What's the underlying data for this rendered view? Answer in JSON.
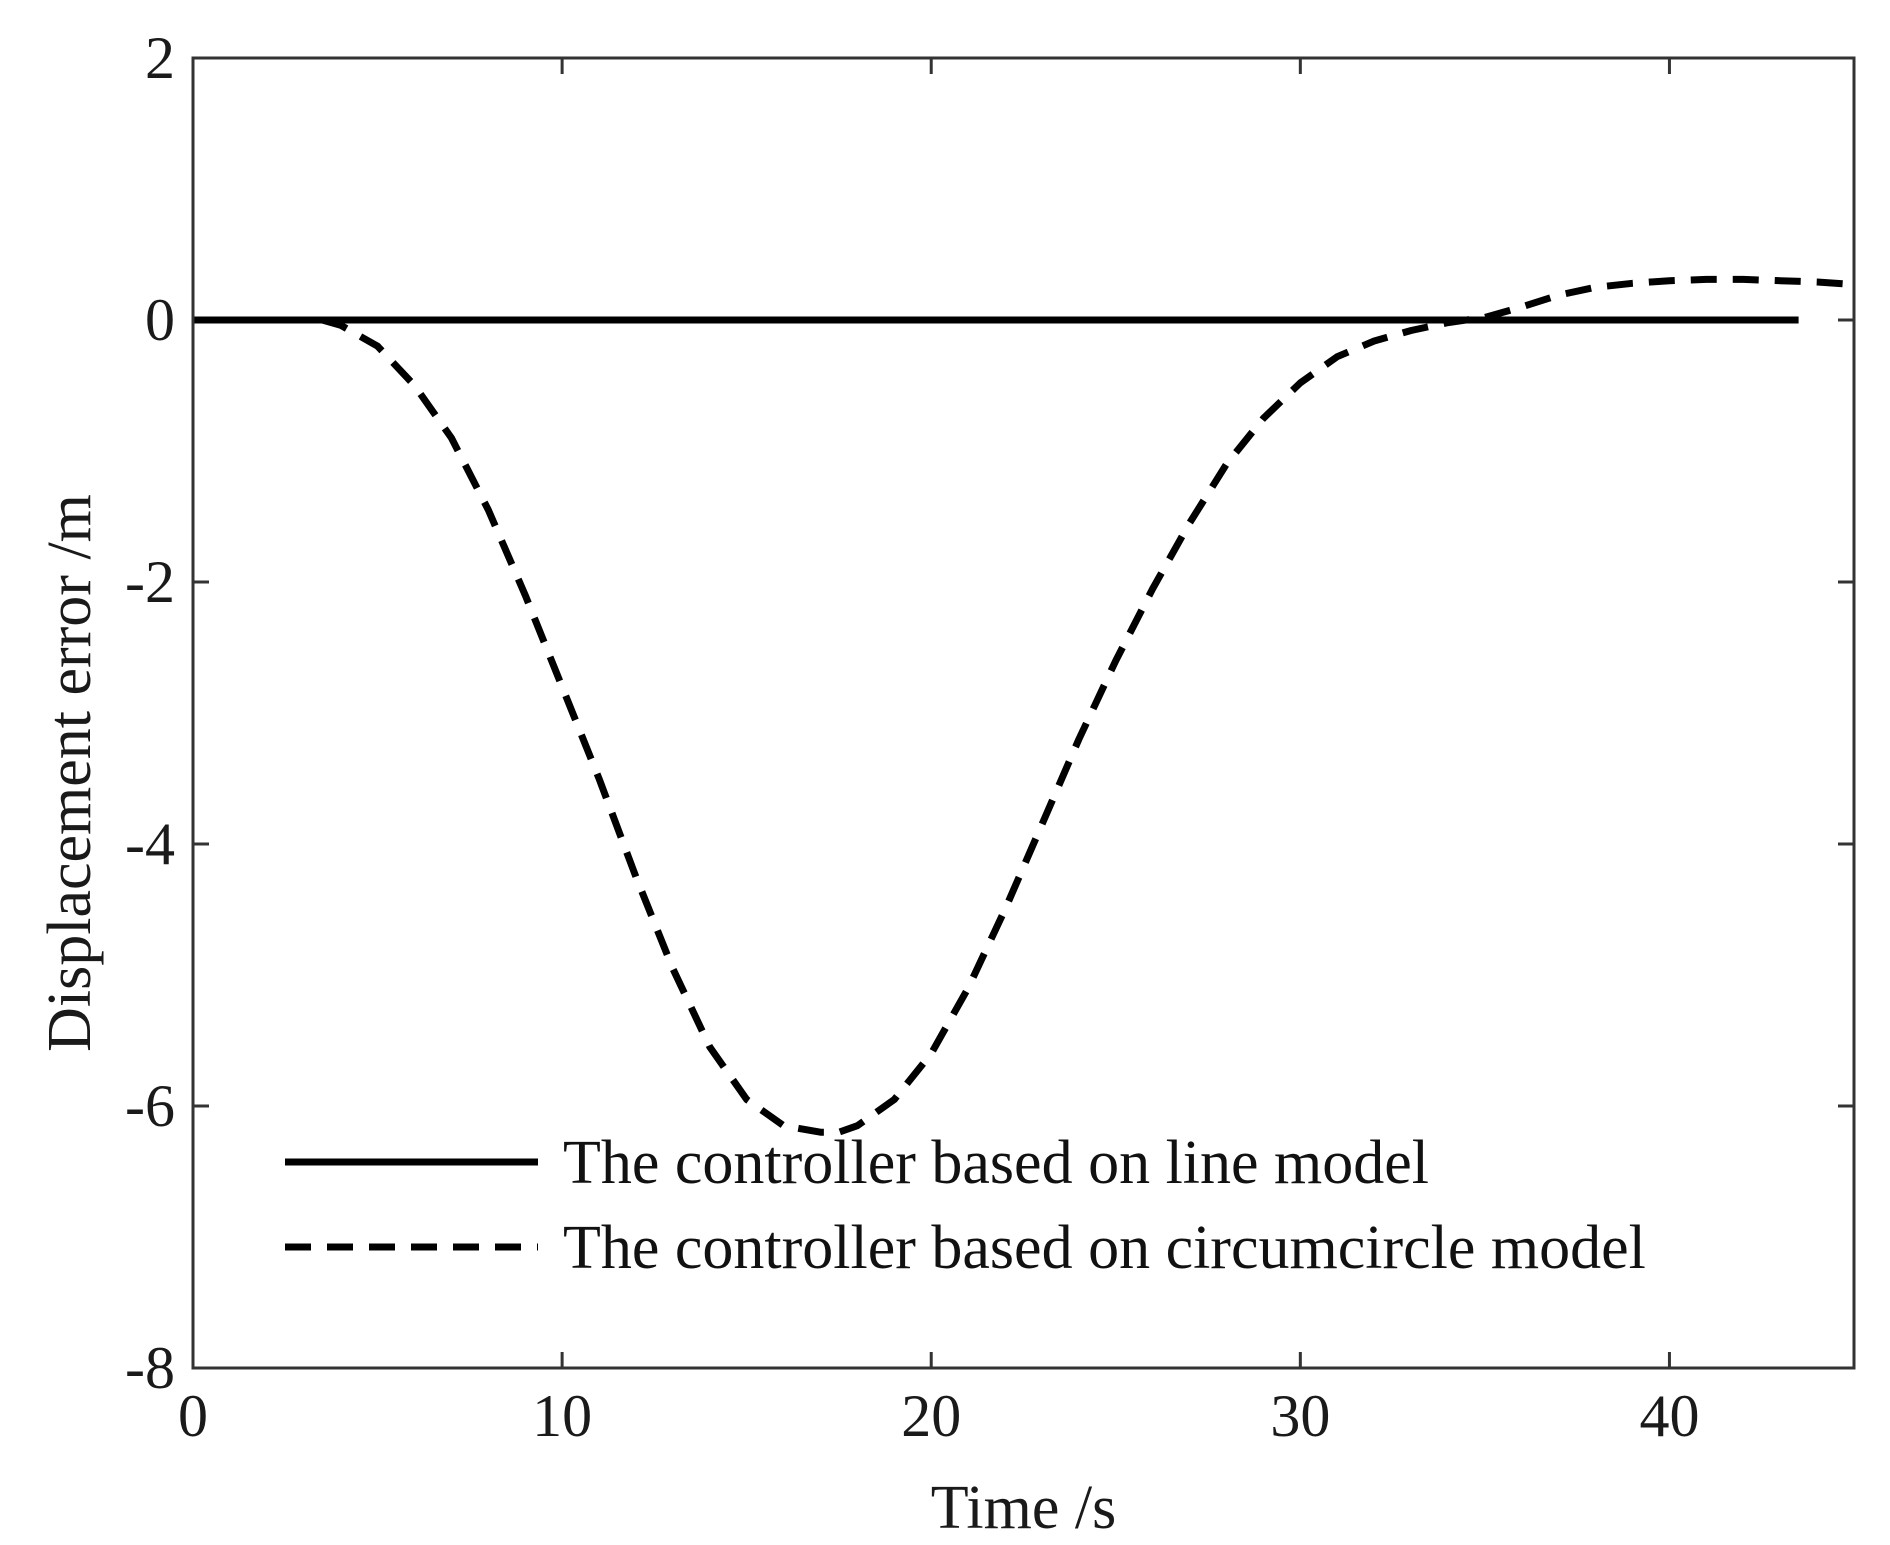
{
  "chart_data": {
    "type": "line",
    "title": "",
    "xlabel": "Time /s",
    "ylabel": "Displacement error /m",
    "xlim": [
      0,
      45
    ],
    "ylim": [
      -8,
      2
    ],
    "xticks": [
      0,
      10,
      20,
      30,
      40
    ],
    "yticks": [
      2,
      0,
      -2,
      -4,
      -6,
      -8
    ],
    "xtick_labels": [
      "0",
      "10",
      "20",
      "30",
      "40"
    ],
    "ytick_labels": [
      "2",
      "0",
      "-2",
      "-4",
      "-6",
      "-8"
    ],
    "grid": false,
    "legend_position": "bottom-left",
    "series": [
      {
        "name": "The controller based on line model",
        "style": "solid",
        "color": "#000000",
        "x": [
          0,
          43.5
        ],
        "y": [
          0,
          0
        ]
      },
      {
        "name": "The controller based on circumcircle model",
        "style": "dashed",
        "color": "#000000",
        "x": [
          3.5,
          4,
          5,
          6,
          7,
          8,
          9,
          10,
          11,
          12,
          13,
          14,
          15,
          16,
          17,
          17.5,
          18,
          19,
          20,
          21,
          22,
          23,
          24,
          25,
          26,
          27,
          28,
          29,
          30,
          31,
          32,
          33,
          34,
          35,
          36,
          37,
          38,
          39,
          40,
          41,
          42,
          43,
          44,
          45
        ],
        "y": [
          0,
          -0.04,
          -0.2,
          -0.5,
          -0.9,
          -1.45,
          -2.1,
          -2.8,
          -3.5,
          -4.25,
          -4.95,
          -5.55,
          -5.95,
          -6.15,
          -6.2,
          -6.2,
          -6.15,
          -5.95,
          -5.6,
          -5.1,
          -4.5,
          -3.85,
          -3.2,
          -2.6,
          -2.05,
          -1.55,
          -1.1,
          -0.75,
          -0.48,
          -0.28,
          -0.16,
          -0.08,
          -0.02,
          0.02,
          0.1,
          0.19,
          0.25,
          0.28,
          0.3,
          0.31,
          0.31,
          0.3,
          0.29,
          0.27
        ]
      }
    ]
  }
}
